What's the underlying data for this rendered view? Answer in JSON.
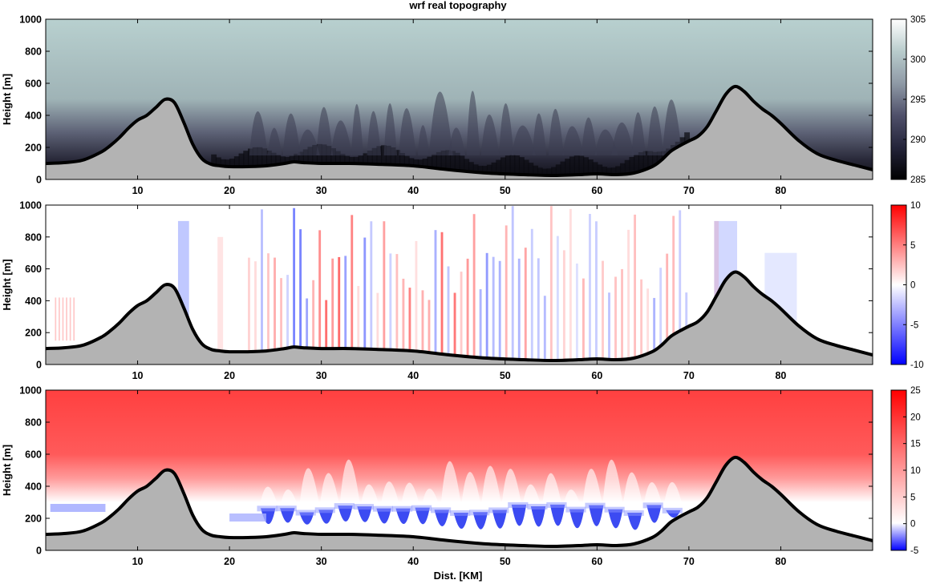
{
  "title": "wrf real topography",
  "colors": {
    "terrain_fill": "#b3b3b3",
    "terrain_line": "#000000",
    "theta_cmap": [
      "#000000",
      "#2a2a3c",
      "#55566c",
      "#8c96a2",
      "#a9c3c3",
      "#ffffff"
    ],
    "div_cmap": [
      "#0000ff",
      "#ffffff",
      "#ff0000"
    ]
  },
  "chart_data": [
    {
      "type": "heatmap",
      "ylabel": "Height [m]",
      "xlabel": "",
      "xticks": [
        10,
        20,
        30,
        40,
        50,
        60,
        70,
        80
      ],
      "yticks": [
        0,
        200,
        400,
        600,
        800,
        1000
      ],
      "xlim": [
        0,
        90
      ],
      "ylim": [
        0,
        1000
      ],
      "colorbar": {
        "min": 285,
        "max": 305,
        "ticks": [
          285,
          290,
          295,
          300,
          305
        ]
      }
    },
    {
      "type": "heatmap",
      "ylabel": "Height [m]",
      "xlabel": "",
      "xticks": [
        10,
        20,
        30,
        40,
        50,
        60,
        70,
        80
      ],
      "yticks": [
        0,
        200,
        400,
        600,
        800,
        1000
      ],
      "xlim": [
        0,
        90
      ],
      "ylim": [
        0,
        1000
      ],
      "colorbar": {
        "min": -10,
        "max": 10,
        "ticks": [
          -10,
          -5,
          0,
          5,
          10
        ]
      }
    },
    {
      "type": "heatmap",
      "ylabel": "Height [m]",
      "xlabel": "Dist. [KM]",
      "xticks": [
        10,
        20,
        30,
        40,
        50,
        60,
        70,
        80
      ],
      "yticks": [
        0,
        200,
        400,
        600,
        800,
        1000
      ],
      "xlim": [
        0,
        90
      ],
      "ylim": [
        0,
        1000
      ],
      "colorbar": {
        "min": -5,
        "max": 25,
        "ticks": [
          -5,
          0,
          5,
          10,
          15,
          20,
          25
        ]
      }
    }
  ],
  "terrain": {
    "x": [
      0,
      2,
      4,
      6,
      7,
      8,
      9,
      10,
      11,
      12,
      13,
      14,
      15,
      16,
      17,
      18,
      19,
      20,
      22,
      24,
      26,
      27,
      28,
      30,
      33,
      36,
      40,
      44,
      48,
      52,
      55,
      58,
      60,
      62,
      64,
      66,
      67,
      68,
      69,
      70,
      71,
      72,
      73,
      74,
      75,
      76,
      77,
      78,
      79,
      80,
      82,
      84,
      86,
      88,
      90
    ],
    "y": [
      100,
      105,
      120,
      170,
      210,
      260,
      320,
      370,
      400,
      450,
      500,
      480,
      360,
      220,
      130,
      95,
      85,
      80,
      80,
      85,
      100,
      110,
      105,
      100,
      100,
      95,
      85,
      60,
      40,
      30,
      25,
      30,
      35,
      30,
      40,
      80,
      120,
      175,
      210,
      240,
      270,
      330,
      430,
      530,
      580,
      550,
      490,
      440,
      400,
      350,
      240,
      160,
      120,
      90,
      60
    ]
  }
}
